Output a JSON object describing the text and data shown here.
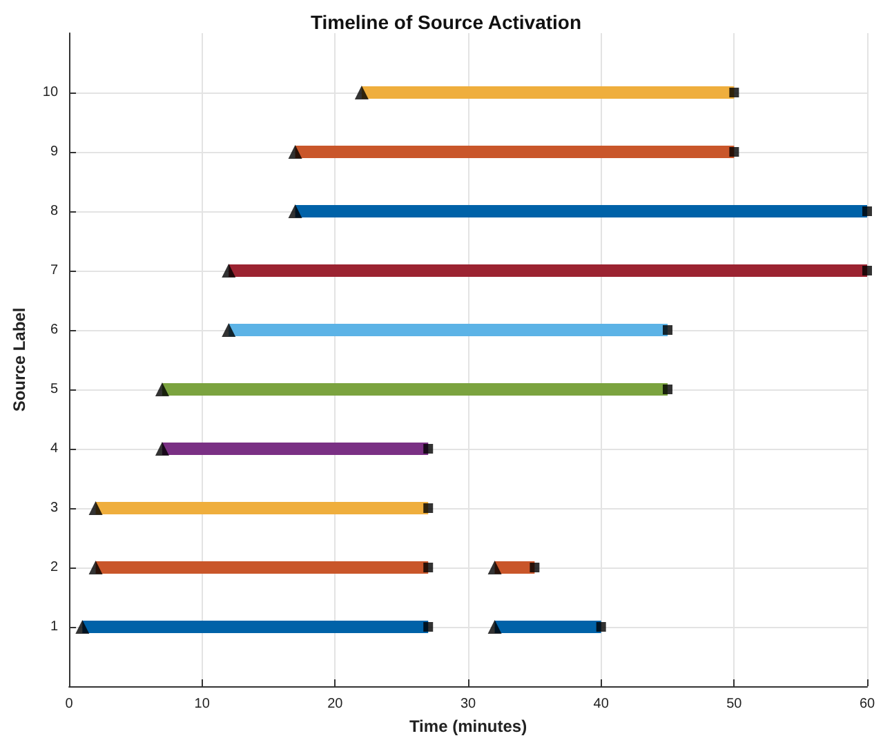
{
  "chart_data": {
    "type": "line",
    "title": "Timeline of Source Activation",
    "xlabel": "Time (minutes)",
    "ylabel": "Source Label",
    "xlim": [
      0,
      60
    ],
    "xticks": [
      0,
      10,
      20,
      30,
      40,
      50,
      60
    ],
    "ylim": [
      0,
      11
    ],
    "yticks": [
      1,
      2,
      3,
      4,
      5,
      6,
      7,
      8,
      9,
      10
    ],
    "grid": true,
    "marker": "none",
    "line_style": "solid",
    "series": [
      {
        "color": "#0062a8",
        "x": [
          1,
          27
        ],
        "values": [
          1,
          1
        ]
      },
      {
        "color": "#0062a8",
        "x": [
          32,
          40
        ],
        "values": [
          1,
          1
        ]
      },
      {
        "color": "#c9562a",
        "x": [
          2,
          27
        ],
        "values": [
          2,
          2
        ]
      },
      {
        "color": "#c9562a",
        "x": [
          32,
          35
        ],
        "values": [
          2,
          2
        ]
      },
      {
        "color": "#efae3d",
        "x": [
          2,
          27
        ],
        "values": [
          3,
          3
        ]
      },
      {
        "color": "#7a3084",
        "x": [
          7,
          27
        ],
        "values": [
          4,
          4
        ]
      },
      {
        "color": "#7ba33f",
        "x": [
          7,
          45
        ],
        "values": [
          5,
          5
        ]
      },
      {
        "color": "#5cb3e6",
        "x": [
          12,
          45
        ],
        "values": [
          6,
          6
        ]
      },
      {
        "color": "#9b2331",
        "x": [
          12,
          60
        ],
        "values": [
          7,
          7
        ]
      },
      {
        "color": "#0062a8",
        "x": [
          17,
          60
        ],
        "values": [
          8,
          8
        ]
      },
      {
        "color": "#c9562a",
        "x": [
          17,
          50
        ],
        "values": [
          9,
          9
        ]
      },
      {
        "color": "#efae3d",
        "x": [
          22,
          50
        ],
        "values": [
          10,
          10
        ]
      },
      {
        "type": "scatter",
        "marker": "triangle",
        "color": "#000000",
        "x": [
          1,
          32,
          2,
          32,
          2,
          7,
          7,
          12,
          12,
          17,
          17,
          22
        ],
        "values": [
          1,
          1,
          2,
          2,
          3,
          4,
          5,
          6,
          7,
          8,
          9,
          10
        ]
      },
      {
        "type": "scatter",
        "marker": "square",
        "color": "#000000",
        "x": [
          27,
          40,
          27,
          35,
          27,
          27,
          45,
          45,
          60,
          60,
          50,
          50
        ],
        "values": [
          1,
          1,
          2,
          2,
          3,
          4,
          5,
          6,
          7,
          8,
          9,
          10
        ]
      }
    ]
  }
}
